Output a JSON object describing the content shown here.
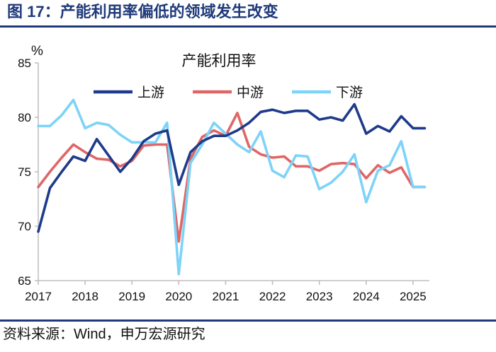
{
  "header": {
    "title": "图 17：产能利用率偏低的领域发生改变"
  },
  "footer": {
    "source": "资料来源：Wind，申万宏源研究"
  },
  "chart_data": {
    "type": "line",
    "title": "产能利用率",
    "ylabel": "%",
    "xlabel": "",
    "ylim": [
      65,
      85
    ],
    "yticks": [
      65,
      70,
      75,
      80,
      85
    ],
    "xlim": [
      2017,
      2025.35
    ],
    "xticks": [
      2017,
      2018,
      2019,
      2020,
      2021,
      2022,
      2023,
      2024,
      2025
    ],
    "legend_position": "top",
    "x": [
      2017.0,
      2017.25,
      2017.5,
      2017.75,
      2018.0,
      2018.25,
      2018.5,
      2018.75,
      2019.0,
      2019.25,
      2019.5,
      2019.75,
      2020.0,
      2020.25,
      2020.5,
      2020.75,
      2021.0,
      2021.25,
      2021.5,
      2021.75,
      2022.0,
      2022.25,
      2022.5,
      2022.75,
      2023.0,
      2023.25,
      2023.5,
      2023.75,
      2024.0,
      2024.25,
      2024.5,
      2024.75,
      2025.0,
      2025.25
    ],
    "series": [
      {
        "name": "上游",
        "color": "#1e3a8a",
        "values": [
          69.5,
          73.5,
          75.0,
          76.4,
          76.0,
          78.0,
          76.5,
          75.0,
          76.2,
          77.8,
          78.5,
          78.8,
          73.8,
          76.8,
          77.8,
          78.3,
          78.3,
          78.8,
          79.5,
          80.5,
          80.7,
          80.4,
          80.6,
          80.6,
          79.8,
          80.0,
          79.7,
          81.2,
          78.5,
          79.2,
          78.7,
          80.1,
          79.0,
          79.0
        ]
      },
      {
        "name": "中游",
        "color": "#e06666",
        "values": [
          73.6,
          75.0,
          76.3,
          77.5,
          76.8,
          76.2,
          76.1,
          75.5,
          76.0,
          77.4,
          77.5,
          77.5,
          68.6,
          76.2,
          78.2,
          78.8,
          78.3,
          80.4,
          77.3,
          76.6,
          76.3,
          76.4,
          75.5,
          75.5,
          75.1,
          75.7,
          75.8,
          75.7,
          74.4,
          75.6,
          74.9,
          75.4,
          73.6,
          73.6
        ]
      },
      {
        "name": "下游",
        "color": "#7dd3f8",
        "values": [
          79.2,
          79.2,
          80.2,
          81.6,
          79.0,
          79.5,
          79.3,
          78.4,
          77.7,
          77.7,
          77.7,
          79.5,
          65.6,
          75.8,
          77.5,
          79.5,
          78.5,
          77.5,
          76.8,
          78.7,
          75.1,
          74.5,
          76.5,
          76.4,
          73.4,
          74.0,
          75.0,
          76.6,
          72.2,
          75.1,
          75.6,
          77.8,
          73.6,
          73.6
        ]
      }
    ]
  }
}
